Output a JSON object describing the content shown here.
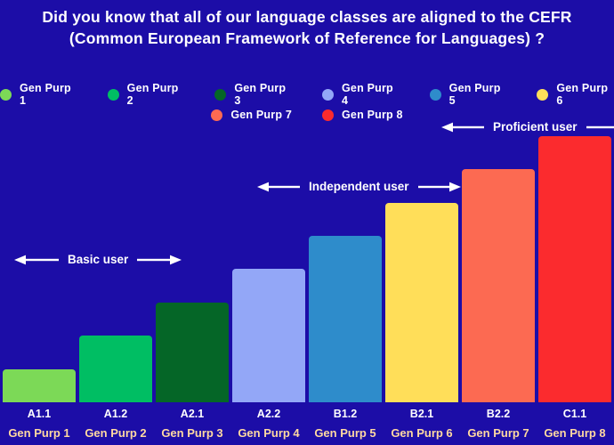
{
  "title": {
    "line1": "Did you know that all of our language classes are aligned to the CEFR",
    "line2": "(Common European Framework of Reference for Languages) ?"
  },
  "legend": {
    "row1": [
      {
        "label": "Gen Purp 1",
        "color": "#7CD957"
      },
      {
        "label": "Gen Purp 2",
        "color": "#00BE63"
      },
      {
        "label": "Gen Purp 3",
        "color": "#056627"
      },
      {
        "label": "Gen Purp 4",
        "color": "#93A7F7"
      },
      {
        "label": "Gen Purp 5",
        "color": "#2E8CCB"
      },
      {
        "label": "Gen Purp 6",
        "color": "#FFDE59"
      }
    ],
    "row2": [
      {
        "label": "Gen Purp 7",
        "color": "#FC6A52"
      },
      {
        "label": "Gen Purp 8",
        "color": "#FB2B2E"
      }
    ]
  },
  "annotations": {
    "basic": "Basic user",
    "independent": "Independent user",
    "proficient": "Proficient user"
  },
  "chart_data": {
    "type": "bar",
    "title": "Did you know that all of our language classes are aligned to the CEFR (Common European Framework of Reference for Languages) ?",
    "categories": [
      "A1.1",
      "A1.2",
      "A2.1",
      "A2.2",
      "B1.2",
      "B2.1",
      "B2.2",
      "C1.1"
    ],
    "bar_labels": [
      "Gen Purp 1",
      "Gen Purp 2",
      "Gen Purp 3",
      "Gen Purp 4",
      "Gen Purp 5",
      "Gen Purp 6",
      "Gen Purp 7",
      "Gen Purp 8"
    ],
    "values": [
      1,
      2,
      3,
      4,
      5,
      6,
      7,
      8
    ],
    "colors": [
      "#7CD957",
      "#00BE63",
      "#056627",
      "#93A7F7",
      "#2E8CCB",
      "#FFDE59",
      "#FC6A52",
      "#FB2B2E"
    ],
    "ylim": [
      0,
      8
    ],
    "grid": false,
    "legend_position": "top",
    "annotations": [
      {
        "text": "Basic user"
      },
      {
        "text": "Independent user"
      },
      {
        "text": "Proficient user"
      }
    ]
  },
  "colors": {
    "background": "#1C0DA7",
    "title_text": "#FFFFFF",
    "category_label": "#FFFFFF",
    "bar_sublabel": "#FFD9A1",
    "annotation_text": "#FFFFFF",
    "arrow": "#FFFFFF"
  }
}
